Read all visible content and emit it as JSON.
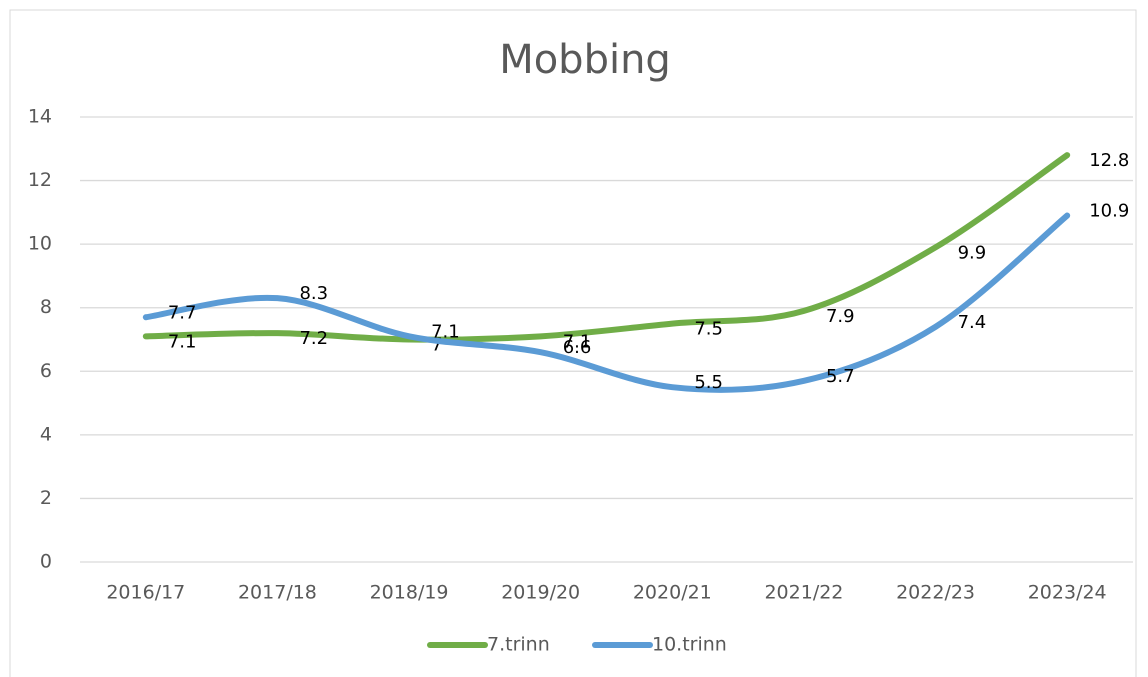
{
  "chart_data": {
    "type": "line",
    "title": "Mobbing",
    "categories": [
      "2016/17",
      "2017/18",
      "2018/19",
      "2019/20",
      "2020/21",
      "2021/22",
      "2022/23",
      "2023/24"
    ],
    "series": [
      {
        "name": "7.trinn",
        "color": "#70ad47",
        "values": [
          7.1,
          7.2,
          7,
          7.1,
          7.5,
          7.9,
          9.9,
          12.8
        ]
      },
      {
        "name": "10.trinn",
        "color": "#5b9bd5",
        "values": [
          7.7,
          8.3,
          7.1,
          6.6,
          5.5,
          5.7,
          7.4,
          10.9
        ]
      }
    ],
    "ylim": [
      0,
      14
    ],
    "yticks": [
      0,
      2,
      4,
      6,
      8,
      10,
      12,
      14
    ],
    "grid": true,
    "smooth": true,
    "legend": "bottom"
  }
}
